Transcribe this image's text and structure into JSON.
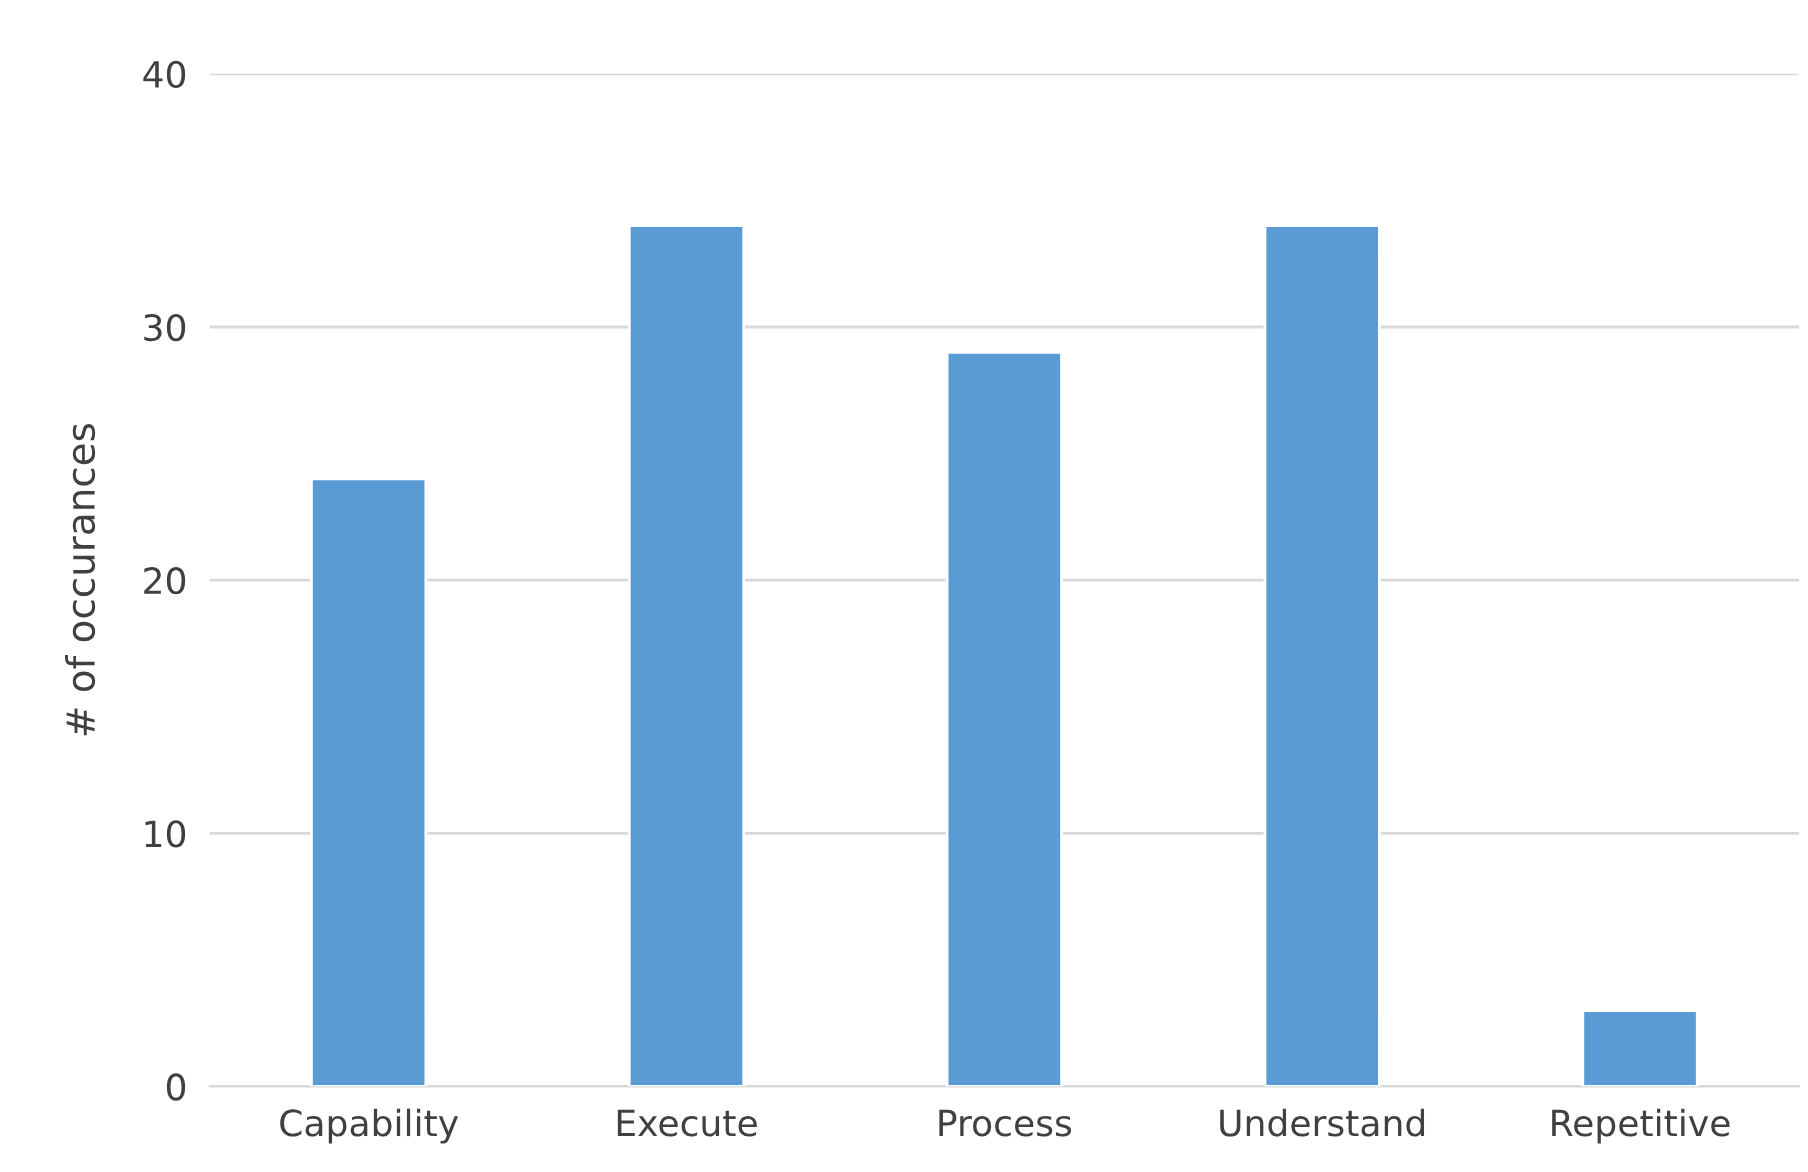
{
  "chart_data": {
    "type": "bar",
    "ylabel": "# of occurances",
    "categories": [
      "Capability",
      "Execute",
      "Process",
      "Understand",
      "Repetitive"
    ],
    "values": [
      24,
      34,
      29,
      34,
      3
    ],
    "color": "#5b9bd5",
    "ylim": [
      0,
      40
    ],
    "yticks": [
      0,
      10,
      20,
      30,
      40
    ],
    "grid": "y"
  }
}
